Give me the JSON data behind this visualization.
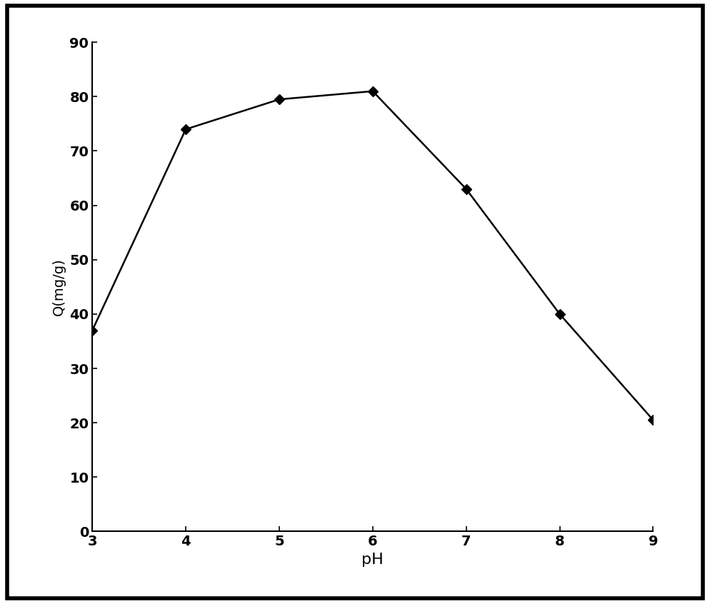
{
  "x": [
    3,
    4,
    5,
    6,
    7,
    8,
    9
  ],
  "y": [
    37,
    74,
    79.5,
    81,
    63,
    40,
    20.5
  ],
  "xlabel": "pH",
  "ylabel": "Q(mg/g)",
  "xlim": [
    3,
    9
  ],
  "ylim": [
    0,
    90
  ],
  "xticks": [
    3,
    4,
    5,
    6,
    7,
    8,
    9
  ],
  "yticks": [
    0,
    10,
    20,
    30,
    40,
    50,
    60,
    70,
    80,
    90
  ],
  "line_color": "#000000",
  "marker": "D",
  "marker_size": 7,
  "marker_color": "#000000",
  "line_width": 1.8,
  "background_color": "#ffffff",
  "xlabel_fontsize": 16,
  "ylabel_fontsize": 14,
  "tick_fontsize": 14,
  "border_color": "#000000",
  "border_linewidth": 4
}
